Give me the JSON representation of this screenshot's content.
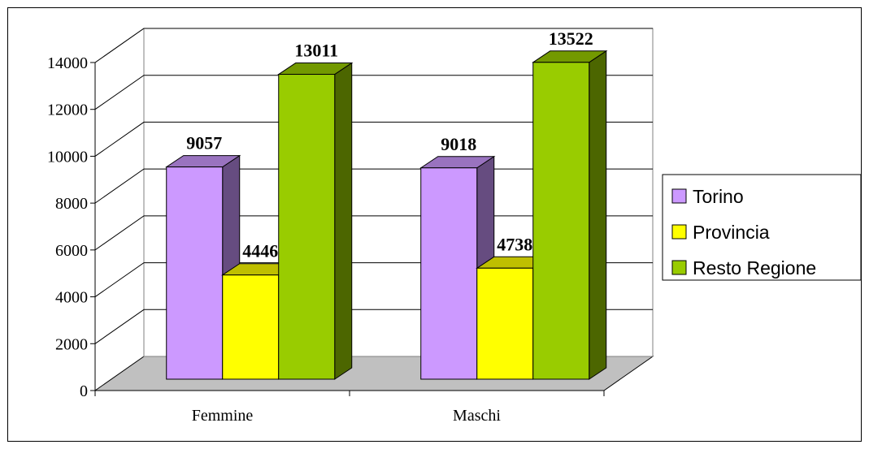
{
  "chart_data": {
    "type": "bar",
    "title": "",
    "xlabel": "",
    "ylabel": "",
    "categories": [
      "Femmine",
      "Maschi"
    ],
    "series": [
      {
        "name": "Torino",
        "values": [
          9057,
          9018
        ]
      },
      {
        "name": "Provincia",
        "values": [
          4446,
          4738
        ]
      },
      {
        "name": "Resto Regione",
        "values": [
          13011,
          13522
        ]
      }
    ],
    "ylim": [
      0,
      14000
    ],
    "yticks": [
      0,
      2000,
      4000,
      6000,
      8000,
      10000,
      12000,
      14000
    ],
    "grid": true,
    "legend_position": "right",
    "style": "3d-clustered-column",
    "colors": {
      "Torino": {
        "front": "#cc99ff",
        "side": "#664c80",
        "top": "#9973bf"
      },
      "Provincia": {
        "front": "#ffff00",
        "side": "#808000",
        "top": "#bfbf00"
      },
      "Resto Regione": {
        "front": "#99cc00",
        "side": "#4c6600",
        "top": "#739900"
      },
      "floor": "#c0c0c0",
      "grid": "#000000"
    }
  }
}
